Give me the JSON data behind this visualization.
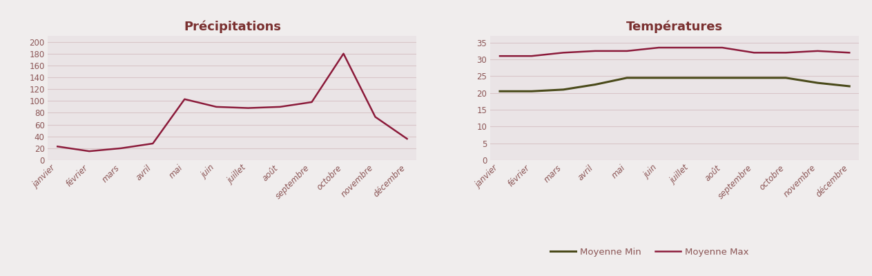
{
  "months": [
    "janvier",
    "février",
    "mars",
    "avril",
    "mai",
    "juin",
    "juillet",
    "août",
    "septembre",
    "octobre",
    "novembre",
    "décembre"
  ],
  "precipitation": [
    23,
    15,
    20,
    28,
    103,
    90,
    88,
    90,
    98,
    180,
    73,
    36
  ],
  "temp_min": [
    20.5,
    20.5,
    21,
    22.5,
    24.5,
    24.5,
    24.5,
    24.5,
    24.5,
    24.5,
    23,
    22
  ],
  "temp_max": [
    31,
    31,
    32,
    32.5,
    32.5,
    33.5,
    33.5,
    33.5,
    32,
    32,
    32.5,
    32
  ],
  "precip_title": "Précipitations",
  "temp_title": "Températures",
  "precip_color": "#8B1A3A",
  "temp_min_color": "#4A4A1A",
  "temp_max_color": "#8B1A3A",
  "panel_bg_color": "#EAE4E6",
  "fig_bg_color": "#F0EDED",
  "grid_color": "#D8C5C8",
  "title_color": "#7A3030",
  "tick_color": "#8B5555",
  "legend_min": "Moyenne Min",
  "legend_max": "Moyenne Max",
  "precip_ylim": [
    0,
    210
  ],
  "precip_yticks": [
    0,
    20,
    40,
    60,
    80,
    100,
    120,
    140,
    160,
    180,
    200
  ],
  "temp_ylim": [
    0,
    37
  ],
  "temp_yticks": [
    0,
    5,
    10,
    15,
    20,
    25,
    30,
    35
  ]
}
